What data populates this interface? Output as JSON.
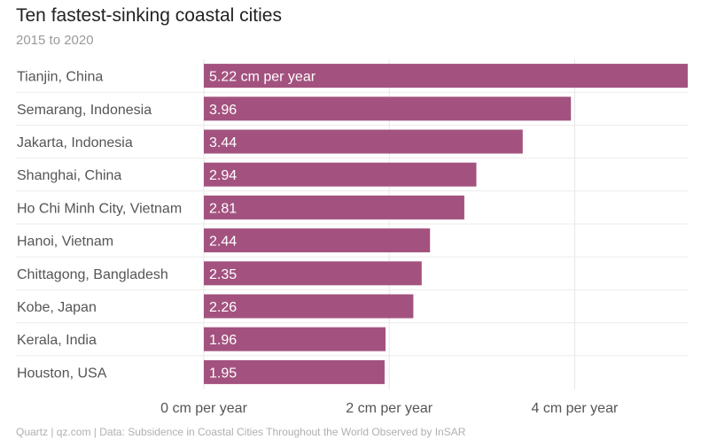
{
  "chart_data": {
    "type": "bar",
    "orientation": "horizontal",
    "title": "Ten fastest-sinking coastal cities",
    "subtitle": "2015 to 2020",
    "categories": [
      "Tianjin, China",
      "Semarang, Indonesia",
      "Jakarta, Indonesia",
      "Shanghai, China",
      "Ho Chi Minh City, Vietnam",
      "Hanoi, Vietnam",
      "Chittagong, Bangladesh",
      "Kobe, Japan",
      "Kerala, India",
      "Houston, USA"
    ],
    "values": [
      5.22,
      3.96,
      3.44,
      2.94,
      2.81,
      2.44,
      2.35,
      2.26,
      1.96,
      1.95
    ],
    "value_labels": [
      "5.22 cm per year",
      "3.96",
      "3.44",
      "2.94",
      "2.81",
      "2.44",
      "2.35",
      "2.26",
      "1.96",
      "1.95"
    ],
    "xticks": [
      0,
      2,
      4
    ],
    "xtick_labels": [
      "0 cm per year",
      "2 cm per year",
      "4 cm per year"
    ],
    "xlim": [
      0,
      5.22
    ],
    "grid": true,
    "bar_color": "#a3527f",
    "source": "Quartz | qz.com | Data: Subsidence in Coastal Cities Throughout the World Observed by InSAR"
  }
}
